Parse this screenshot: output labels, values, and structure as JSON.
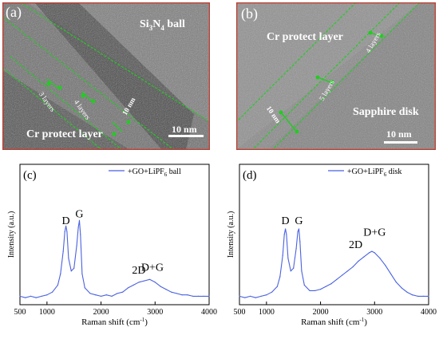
{
  "panels": {
    "a": {
      "label": "(a)",
      "ball_label_pre": "Si",
      "ball_label_sub1": "3",
      "ball_label_mid": "N",
      "ball_label_sub2": "4",
      "ball_label_post": " ball",
      "layer_label": "Cr protect layer",
      "layers_1": "3 layers",
      "layers_2": "4 layers",
      "thickness": "10 nm",
      "scale": "10 nm"
    },
    "b": {
      "label": "(b)",
      "layer_label": "Cr protect layer",
      "disk_label": "Sapphire disk",
      "layers_1": "4 layers",
      "layers_2": "5 layers",
      "thickness": "10 nm",
      "scale": "10 nm"
    }
  },
  "colors": {
    "frame": "#c0392b",
    "annotation": "#22cc22",
    "spectrum": "#4a62e0"
  },
  "chart_data": [
    {
      "panel_label": "(c)",
      "type": "line",
      "legend_pre": "+GO+LiPF",
      "legend_sub": "6",
      "legend_post": " ball",
      "xlabel": "Raman shift (cm",
      "xlabel_sup": "-1",
      "xlabel_post": ")",
      "ylabel": "Intensity (a.u.)",
      "xlim": [
        500,
        4000
      ],
      "ylim": [
        0,
        1
      ],
      "xticks": [
        "500",
        "1000",
        "2000",
        "3000",
        "4000"
      ],
      "xtick_values": [
        500,
        1000,
        2000,
        3000,
        4000
      ],
      "peak_labels": [
        {
          "text": "D",
          "x": 1350,
          "y": 0.55
        },
        {
          "text": "G",
          "x": 1600,
          "y": 0.6
        },
        {
          "text": "2D",
          "x": 2700,
          "y": 0.2
        },
        {
          "text": "D+G",
          "x": 2950,
          "y": 0.22
        }
      ],
      "x": [
        500,
        600,
        700,
        800,
        900,
        1000,
        1100,
        1200,
        1250,
        1300,
        1330,
        1350,
        1370,
        1400,
        1450,
        1500,
        1550,
        1580,
        1600,
        1620,
        1650,
        1700,
        1800,
        1900,
        2000,
        2100,
        2200,
        2300,
        2400,
        2500,
        2600,
        2700,
        2800,
        2900,
        3000,
        3100,
        3200,
        3300,
        3400,
        3500,
        3600,
        3700,
        3800,
        3900,
        4000
      ],
      "y": [
        0.06,
        0.05,
        0.06,
        0.05,
        0.06,
        0.07,
        0.09,
        0.14,
        0.22,
        0.38,
        0.52,
        0.56,
        0.52,
        0.33,
        0.24,
        0.26,
        0.42,
        0.55,
        0.6,
        0.5,
        0.22,
        0.12,
        0.08,
        0.07,
        0.06,
        0.07,
        0.06,
        0.08,
        0.09,
        0.12,
        0.14,
        0.16,
        0.17,
        0.18,
        0.16,
        0.13,
        0.11,
        0.09,
        0.08,
        0.07,
        0.07,
        0.06,
        0.06,
        0.06,
        0.06
      ]
    },
    {
      "panel_label": "(d)",
      "type": "line",
      "legend_pre": "+GO+LiPF",
      "legend_sub": "6",
      "legend_post": " disk",
      "xlabel": "Raman shift (cm",
      "xlabel_sup": "-1",
      "xlabel_post": ")",
      "ylabel": "Intensity (a.u.)",
      "xlim": [
        500,
        4000
      ],
      "ylim": [
        0,
        1
      ],
      "xticks": [
        "500",
        "1000",
        "2000",
        "3000",
        "4000"
      ],
      "xtick_values": [
        500,
        1000,
        2000,
        3000,
        4000
      ],
      "peak_labels": [
        {
          "text": "D",
          "x": 1350,
          "y": 0.55
        },
        {
          "text": "G",
          "x": 1600,
          "y": 0.55
        },
        {
          "text": "2D",
          "x": 2650,
          "y": 0.38
        },
        {
          "text": "D+G",
          "x": 3000,
          "y": 0.47
        }
      ],
      "x": [
        500,
        600,
        700,
        800,
        900,
        1000,
        1100,
        1200,
        1250,
        1300,
        1330,
        1350,
        1370,
        1400,
        1450,
        1500,
        1550,
        1580,
        1600,
        1620,
        1650,
        1700,
        1800,
        1900,
        2000,
        2100,
        2200,
        2300,
        2400,
        2500,
        2600,
        2700,
        2800,
        2900,
        2950,
        3000,
        3100,
        3200,
        3300,
        3400,
        3500,
        3600,
        3700,
        3800,
        3900,
        4000
      ],
      "y": [
        0.06,
        0.05,
        0.06,
        0.05,
        0.06,
        0.07,
        0.09,
        0.13,
        0.2,
        0.35,
        0.5,
        0.54,
        0.5,
        0.33,
        0.24,
        0.26,
        0.4,
        0.52,
        0.54,
        0.45,
        0.24,
        0.14,
        0.1,
        0.1,
        0.11,
        0.13,
        0.15,
        0.18,
        0.21,
        0.24,
        0.27,
        0.31,
        0.34,
        0.37,
        0.38,
        0.37,
        0.33,
        0.28,
        0.22,
        0.16,
        0.12,
        0.09,
        0.07,
        0.06,
        0.06,
        0.06
      ]
    }
  ]
}
